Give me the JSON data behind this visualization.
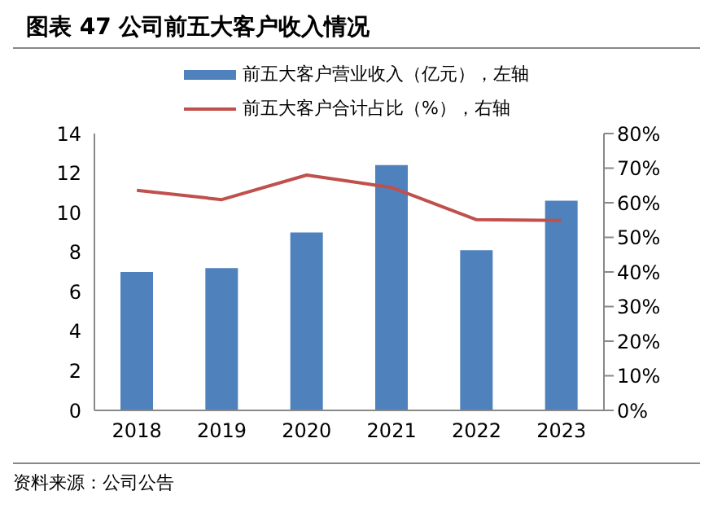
{
  "chart_data": {
    "type": "bar",
    "title": "图表 47 公司前五大客户收入情况",
    "categories": [
      "2018",
      "2019",
      "2020",
      "2021",
      "2022",
      "2023"
    ],
    "series": [
      {
        "name": "前五大客户营业收入（亿元），左轴",
        "color": "#4f81bd",
        "values": [
          7.0,
          7.2,
          9.0,
          12.4,
          8.1,
          10.6
        ]
      },
      {
        "name": "前五大客户合计占比（%），右轴",
        "type": "line",
        "axis": "y2",
        "color": "#c0504d",
        "values": [
          63.6,
          60.9,
          68,
          64.4,
          55.1,
          54.9
        ]
      }
    ],
    "ylim": [
      0,
      14
    ],
    "yticks": [
      0,
      2,
      4,
      6,
      8,
      10,
      12,
      14
    ],
    "y2lim": [
      0,
      80
    ],
    "y2ticks": [
      {
        "value": 0,
        "label": "0%"
      },
      {
        "value": 10,
        "label": "10%"
      },
      {
        "value": 20,
        "label": "20%"
      },
      {
        "value": 30,
        "label": "30%"
      },
      {
        "value": 40,
        "label": "40%"
      },
      {
        "value": 50,
        "label": "50%"
      },
      {
        "value": 60,
        "label": "60%"
      },
      {
        "value": 70,
        "label": "70%"
      },
      {
        "value": 80,
        "label": "80%"
      }
    ],
    "legend": "top",
    "grid": false,
    "marker": "none",
    "annotations": [
      "资料来源：公司公告"
    ]
  }
}
